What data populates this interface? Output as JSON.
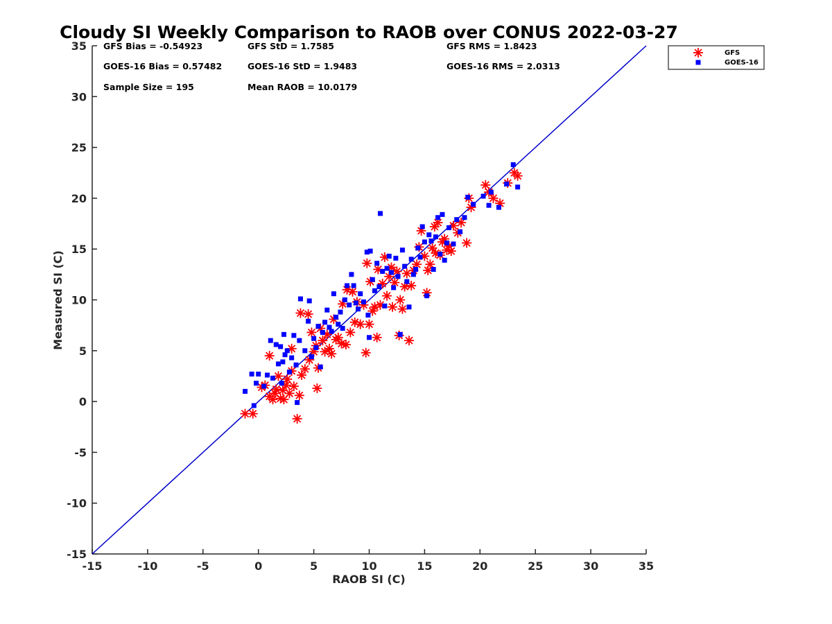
{
  "chart_data": {
    "type": "scatter",
    "title": "Cloudy SI Weekly Comparison to RAOB over CONUS 2022-03-27",
    "xlabel": "RAOB SI (C)",
    "ylabel": "Measured SI (C)",
    "xlim": [
      -15,
      35
    ],
    "ylim": [
      -15,
      35
    ],
    "xticks": [
      -15,
      -10,
      -5,
      0,
      5,
      10,
      15,
      20,
      25,
      30,
      35
    ],
    "yticks": [
      -15,
      -10,
      -5,
      0,
      5,
      10,
      15,
      20,
      25,
      30,
      35
    ],
    "grid": false,
    "legend_position": "outside top-right",
    "reference_line": {
      "from": [
        -15,
        -15
      ],
      "to": [
        35,
        35
      ],
      "color": "#0000cc"
    },
    "stats": {
      "gfs_bias": "GFS Bias = -0.54923",
      "gfs_std": "GFS StD = 1.7585",
      "gfs_rms": "GFS RMS = 1.8423",
      "goes_bias": "GOES-16 Bias = 0.57482",
      "goes_std": "GOES-16 StD = 1.9483",
      "goes_rms": "GOES-16 RMS = 2.0313",
      "sample_size": "Sample Size = 195",
      "mean_raob": "Mean RAOB = 10.0179"
    },
    "series": [
      {
        "name": "GFS",
        "marker": "asterisk",
        "color": "#ff0000",
        "points": [
          [
            -1.2,
            -1.2
          ],
          [
            -0.5,
            -1.2
          ],
          [
            0.3,
            1.4
          ],
          [
            0.6,
            1.6
          ],
          [
            1.0,
            0.5
          ],
          [
            1.0,
            4.5
          ],
          [
            1.3,
            0.2
          ],
          [
            1.5,
            0.8
          ],
          [
            1.6,
            1.2
          ],
          [
            1.8,
            2.5
          ],
          [
            2.0,
            0.3
          ],
          [
            2.2,
            1.1
          ],
          [
            2.3,
            0.2
          ],
          [
            2.5,
            1.6
          ],
          [
            2.6,
            2.2
          ],
          [
            2.8,
            0.8
          ],
          [
            3.0,
            3.0
          ],
          [
            3.0,
            5.2
          ],
          [
            3.2,
            1.5
          ],
          [
            3.5,
            -1.7
          ],
          [
            3.7,
            0.6
          ],
          [
            3.8,
            8.7
          ],
          [
            3.9,
            2.6
          ],
          [
            4.2,
            3.2
          ],
          [
            4.5,
            8.6
          ],
          [
            4.6,
            4.1
          ],
          [
            4.8,
            6.8
          ],
          [
            5.0,
            4.9
          ],
          [
            5.2,
            5.5
          ],
          [
            5.3,
            1.3
          ],
          [
            5.4,
            3.3
          ],
          [
            5.6,
            7.2
          ],
          [
            5.8,
            6.0
          ],
          [
            6.0,
            4.9
          ],
          [
            6.2,
            6.6
          ],
          [
            6.4,
            5.2
          ],
          [
            6.6,
            4.7
          ],
          [
            6.8,
            8.1
          ],
          [
            7.0,
            6.1
          ],
          [
            7.2,
            6.3
          ],
          [
            7.5,
            5.7
          ],
          [
            7.6,
            9.6
          ],
          [
            7.9,
            5.6
          ],
          [
            8.0,
            11.0
          ],
          [
            8.3,
            6.8
          ],
          [
            8.5,
            10.8
          ],
          [
            8.7,
            7.8
          ],
          [
            8.9,
            9.8
          ],
          [
            9.2,
            7.6
          ],
          [
            9.5,
            9.5
          ],
          [
            9.7,
            4.8
          ],
          [
            9.8,
            13.6
          ],
          [
            10.0,
            7.6
          ],
          [
            10.1,
            11.8
          ],
          [
            10.3,
            8.9
          ],
          [
            10.5,
            9.3
          ],
          [
            10.7,
            6.3
          ],
          [
            10.8,
            13.0
          ],
          [
            11.0,
            9.5
          ],
          [
            11.2,
            11.6
          ],
          [
            11.4,
            14.2
          ],
          [
            11.6,
            10.4
          ],
          [
            11.8,
            12.3
          ],
          [
            12.0,
            13.2
          ],
          [
            12.1,
            9.3
          ],
          [
            12.3,
            11.7
          ],
          [
            12.5,
            12.8
          ],
          [
            12.7,
            6.5
          ],
          [
            12.8,
            10.0
          ],
          [
            13.0,
            9.1
          ],
          [
            13.2,
            11.3
          ],
          [
            13.4,
            12.6
          ],
          [
            13.6,
            6.0
          ],
          [
            13.8,
            11.4
          ],
          [
            14.0,
            12.9
          ],
          [
            14.3,
            13.5
          ],
          [
            14.5,
            15.2
          ],
          [
            14.7,
            16.8
          ],
          [
            15.0,
            14.3
          ],
          [
            15.2,
            10.7
          ],
          [
            15.3,
            12.9
          ],
          [
            15.5,
            13.5
          ],
          [
            15.7,
            15.1
          ],
          [
            15.9,
            17.2
          ],
          [
            16.0,
            14.6
          ],
          [
            16.2,
            17.6
          ],
          [
            16.4,
            14.4
          ],
          [
            16.6,
            15.7
          ],
          [
            16.8,
            16.0
          ],
          [
            17.0,
            14.9
          ],
          [
            17.2,
            15.3
          ],
          [
            17.4,
            14.8
          ],
          [
            17.6,
            17.3
          ],
          [
            18.0,
            16.6
          ],
          [
            18.3,
            17.6
          ],
          [
            18.8,
            15.6
          ],
          [
            19.0,
            20.0
          ],
          [
            19.2,
            19.1
          ],
          [
            20.5,
            21.3
          ],
          [
            20.8,
            20.6
          ],
          [
            21.2,
            20.0
          ],
          [
            21.8,
            19.5
          ],
          [
            22.5,
            21.5
          ],
          [
            23.1,
            22.5
          ],
          [
            23.4,
            22.2
          ]
        ]
      },
      {
        "name": "GOES-16",
        "marker": "square",
        "color": "#0000ff",
        "points": [
          [
            -1.2,
            1.0
          ],
          [
            -0.6,
            2.7
          ],
          [
            -0.4,
            -0.4
          ],
          [
            -0.2,
            1.8
          ],
          [
            0.0,
            2.7
          ],
          [
            0.5,
            1.5
          ],
          [
            0.8,
            2.6
          ],
          [
            1.1,
            6.0
          ],
          [
            1.3,
            2.3
          ],
          [
            1.6,
            5.6
          ],
          [
            1.8,
            3.7
          ],
          [
            2.0,
            5.4
          ],
          [
            2.1,
            1.8
          ],
          [
            2.2,
            3.9
          ],
          [
            2.3,
            6.6
          ],
          [
            2.4,
            4.6
          ],
          [
            2.6,
            5.0
          ],
          [
            2.8,
            2.9
          ],
          [
            3.0,
            4.3
          ],
          [
            3.2,
            6.5
          ],
          [
            3.4,
            3.6
          ],
          [
            3.5,
            -0.1
          ],
          [
            3.7,
            6.0
          ],
          [
            3.8,
            10.1
          ],
          [
            4.2,
            5.0
          ],
          [
            4.5,
            7.9
          ],
          [
            4.6,
            9.9
          ],
          [
            4.8,
            4.4
          ],
          [
            5.0,
            6.2
          ],
          [
            5.2,
            5.3
          ],
          [
            5.4,
            7.4
          ],
          [
            5.6,
            3.4
          ],
          [
            5.8,
            6.8
          ],
          [
            6.0,
            7.8
          ],
          [
            6.2,
            9.0
          ],
          [
            6.4,
            7.3
          ],
          [
            6.6,
            6.9
          ],
          [
            6.8,
            10.6
          ],
          [
            7.0,
            8.3
          ],
          [
            7.2,
            7.6
          ],
          [
            7.4,
            8.8
          ],
          [
            7.6,
            7.2
          ],
          [
            7.8,
            10.0
          ],
          [
            8.0,
            11.4
          ],
          [
            8.2,
            9.5
          ],
          [
            8.4,
            12.5
          ],
          [
            8.6,
            11.4
          ],
          [
            8.8,
            9.7
          ],
          [
            9.0,
            9.1
          ],
          [
            9.2,
            10.6
          ],
          [
            9.5,
            9.8
          ],
          [
            9.8,
            14.7
          ],
          [
            9.9,
            8.5
          ],
          [
            10.0,
            6.3
          ],
          [
            10.1,
            14.8
          ],
          [
            10.3,
            12.0
          ],
          [
            10.5,
            10.9
          ],
          [
            10.7,
            13.6
          ],
          [
            10.9,
            11.3
          ],
          [
            11.0,
            18.5
          ],
          [
            11.2,
            12.8
          ],
          [
            11.4,
            9.4
          ],
          [
            11.6,
            13.1
          ],
          [
            11.8,
            14.3
          ],
          [
            12.0,
            12.7
          ],
          [
            12.2,
            11.2
          ],
          [
            12.4,
            14.1
          ],
          [
            12.6,
            12.3
          ],
          [
            12.8,
            6.6
          ],
          [
            13.0,
            14.9
          ],
          [
            13.2,
            13.3
          ],
          [
            13.4,
            11.8
          ],
          [
            13.6,
            9.3
          ],
          [
            13.8,
            14.0
          ],
          [
            14.0,
            12.5
          ],
          [
            14.2,
            13.0
          ],
          [
            14.4,
            15.1
          ],
          [
            14.6,
            14.2
          ],
          [
            14.8,
            17.2
          ],
          [
            15.0,
            15.7
          ],
          [
            15.2,
            10.4
          ],
          [
            15.4,
            16.4
          ],
          [
            15.6,
            15.8
          ],
          [
            15.8,
            13.0
          ],
          [
            16.0,
            16.2
          ],
          [
            16.2,
            18.1
          ],
          [
            16.4,
            14.5
          ],
          [
            16.6,
            18.4
          ],
          [
            16.8,
            13.9
          ],
          [
            17.0,
            15.6
          ],
          [
            17.2,
            17.1
          ],
          [
            17.6,
            15.5
          ],
          [
            17.9,
            17.9
          ],
          [
            18.2,
            16.7
          ],
          [
            18.6,
            18.1
          ],
          [
            18.9,
            20.1
          ],
          [
            19.4,
            19.4
          ],
          [
            20.3,
            20.2
          ],
          [
            20.8,
            19.3
          ],
          [
            21.0,
            20.6
          ],
          [
            21.7,
            19.1
          ],
          [
            22.4,
            21.4
          ],
          [
            23.0,
            23.3
          ],
          [
            23.4,
            21.1
          ]
        ]
      }
    ]
  }
}
